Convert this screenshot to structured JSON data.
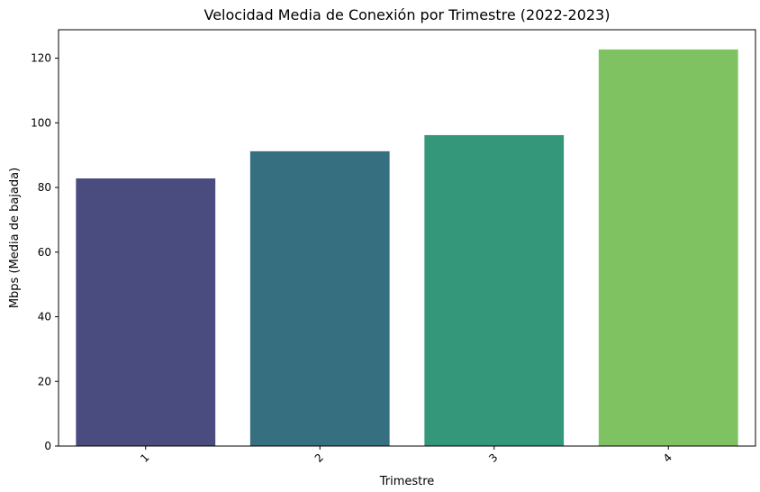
{
  "chart_data": {
    "type": "bar",
    "title": "Velocidad Media de Conexión por Trimestre (2022-2023)",
    "xlabel": "Trimestre",
    "ylabel": "Mbps (Media de bajada)",
    "categories": [
      "1",
      "2",
      "3",
      "4"
    ],
    "values": [
      82.8,
      91.2,
      96.2,
      122.7
    ],
    "colors": [
      "#4a4b7f",
      "#366f80",
      "#35977a",
      "#7fc261"
    ],
    "ylim": [
      0,
      128.8
    ],
    "yticks": [
      0,
      20,
      40,
      60,
      80,
      100,
      120
    ],
    "grid": false,
    "legend": false
  }
}
